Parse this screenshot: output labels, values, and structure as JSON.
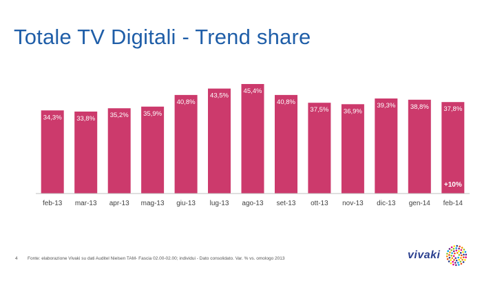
{
  "title": "Totale TV Digitali - Trend share",
  "footer": {
    "page_number": "4",
    "source": "Fonte: elaborazione Vivaki su dati Auditel Nielsen TAM- Fascia 02.00-02.00; individui - Dato consolidato. Var. % vs. omologo 2013"
  },
  "logo": {
    "text": "vivaki"
  },
  "colors": {
    "bar": "#cc3a6c",
    "title": "#1f5ea8",
    "axis": "#bfbfbf"
  },
  "chart_data": {
    "type": "bar",
    "categories": [
      "feb-13",
      "mar-13",
      "apr-13",
      "mag-13",
      "giu-13",
      "lug-13",
      "ago-13",
      "set-13",
      "ott-13",
      "nov-13",
      "dic-13",
      "gen-14",
      "feb-14"
    ],
    "values": [
      34.3,
      33.8,
      35.2,
      35.9,
      40.8,
      43.5,
      45.4,
      40.8,
      37.5,
      36.9,
      39.3,
      38.8,
      37.8
    ],
    "labels": [
      "34,3%",
      "33,8%",
      "35,2%",
      "35,9%",
      "40,8%",
      "43,5%",
      "45,4%",
      "40,8%",
      "37,5%",
      "36,9%",
      "39,3%",
      "38,8%",
      "37,8%"
    ],
    "annotation": {
      "category": "feb-14",
      "text": "+10%"
    },
    "title": "",
    "xlabel": "",
    "ylabel": "",
    "ylim": [
      0,
      50
    ],
    "grid": false,
    "legend": "none"
  }
}
